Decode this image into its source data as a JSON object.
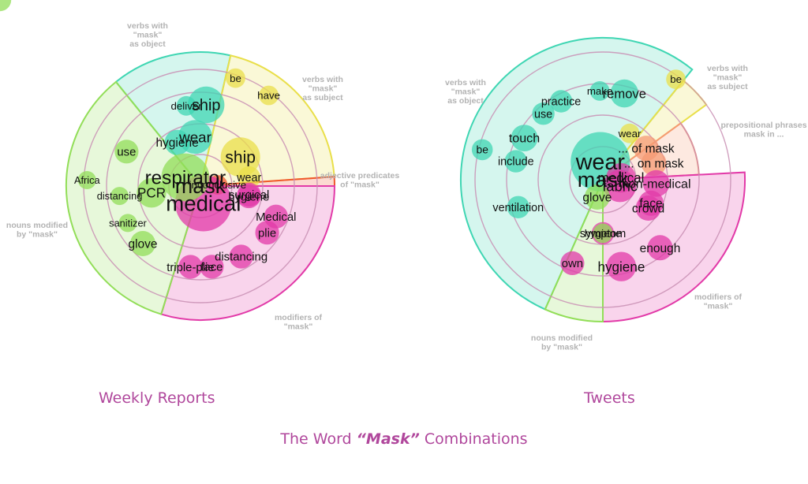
{
  "title": {
    "before": "The Word ",
    "emph": "“Mask”",
    "after": " Combinations"
  },
  "colors": {
    "verb_object": "#3fd6b3",
    "verb_subject": "#e9df4a",
    "adjective_predicate": "#f0582e",
    "prepositional": "#f59a73",
    "modifier": "#e23aa8",
    "noun_modified": "#92de58",
    "ring": "#c98fb4",
    "category_label": "#b3b3b3",
    "caption": "#b0479c"
  },
  "chart_data": [
    {
      "type": "radial-bubble",
      "caption": "Weekly Reports",
      "center_word": "mask",
      "sectors": [
        {
          "id": "verb_object",
          "label": [
            "verbs with",
            "\"mask\"",
            "as object"
          ],
          "start_deg": -39,
          "end_deg": 13
        },
        {
          "id": "verb_subject",
          "label": [
            "verbs with",
            "\"mask\"",
            "as subject"
          ],
          "start_deg": 13,
          "end_deg": 86
        },
        {
          "id": "adjective_predicate",
          "label": [
            "adjective predicates",
            "of \"mask\""
          ],
          "start_deg": 86,
          "end_deg": 90
        },
        {
          "id": "modifier",
          "label": [
            "modifiers of",
            "\"mask\""
          ],
          "start_deg": 90,
          "end_deg": 197
        },
        {
          "id": "noun_modified",
          "label": [
            "nouns modified",
            "by \"mask\""
          ],
          "start_deg": 197,
          "end_deg": 321
        }
      ],
      "words": [
        {
          "text": "deliver",
          "cat": "verb_object",
          "rank": 3,
          "weight": 0.6
        },
        {
          "text": "ship",
          "cat": "verb_object",
          "rank": 3,
          "weight": 1.8
        },
        {
          "text": "wear",
          "cat": "verb_object",
          "rank": 2,
          "weight": 1.6
        },
        {
          "text": "hygiene",
          "cat": "verb_object",
          "rank": 2,
          "weight": 1.0
        },
        {
          "text": "be",
          "cat": "verb_subject",
          "rank": 4,
          "weight": 0.6
        },
        {
          "text": "have",
          "cat": "verb_subject",
          "rank": 4,
          "weight": 0.6
        },
        {
          "text": "ship",
          "cat": "verb_subject",
          "rank": 2,
          "weight": 2.0
        },
        {
          "text": "wear",
          "cat": "verb_subject",
          "rank": 2,
          "weight": 0.8
        },
        {
          "text": "inconclusive",
          "cat": "adjective_predicate",
          "rank": 1,
          "weight": 0.6
        },
        {
          "text": "hygiene",
          "cat": "modifier",
          "rank": 2,
          "weight": 0.9
        },
        {
          "text": "surgical",
          "cat": "modifier",
          "rank": 2,
          "weight": 0.9
        },
        {
          "text": "Medical",
          "cat": "modifier",
          "rank": 3,
          "weight": 0.9
        },
        {
          "text": "plie",
          "cat": "modifier",
          "rank": 3,
          "weight": 0.9
        },
        {
          "text": "distancing",
          "cat": "modifier",
          "rank": 3,
          "weight": 0.9
        },
        {
          "text": "face",
          "cat": "modifier",
          "rank": 3,
          "weight": 0.9
        },
        {
          "text": "triple-plie",
          "cat": "modifier",
          "rank": 3,
          "weight": 0.9
        },
        {
          "text": "medical",
          "cat": "modifier",
          "rank": 1,
          "weight": 3.2
        },
        {
          "text": "respirator",
          "cat": "noun_modified",
          "rank": 1,
          "weight": 2.6
        },
        {
          "text": "PCR",
          "cat": "noun_modified",
          "rank": 2,
          "weight": 1.3
        },
        {
          "text": "use",
          "cat": "noun_modified",
          "rank": 3,
          "weight": 0.9
        },
        {
          "text": "distancing",
          "cat": "noun_modified",
          "rank": 3,
          "weight": 0.5
        },
        {
          "text": "Africa",
          "cat": "noun_modified",
          "rank": 4,
          "weight": 0.5
        },
        {
          "text": "sanitizer",
          "cat": "noun_modified",
          "rank": 3,
          "weight": 0.5
        },
        {
          "text": "glove",
          "cat": "noun_modified",
          "rank": 3,
          "weight": 1.0
        }
      ]
    },
    {
      "type": "radial-bubble",
      "caption": "Tweets",
      "center_word": "mask",
      "sectors": [
        {
          "id": "verb_object",
          "label": [
            "verbs with",
            "\"mask\"",
            "as object"
          ],
          "start_deg": -156,
          "end_deg": 39
        },
        {
          "id": "verb_subject",
          "label": [
            "verbs with",
            "\"mask\"",
            "as subject"
          ],
          "start_deg": 39,
          "end_deg": 54
        },
        {
          "id": "prepositional",
          "label": [
            "prepositional phrases",
            "mask in ..."
          ],
          "start_deg": 54,
          "end_deg": 87
        },
        {
          "id": "modifier",
          "label": [
            "modifiers of",
            "\"mask\""
          ],
          "start_deg": 87,
          "end_deg": 180
        },
        {
          "id": "noun_modified",
          "label": [
            "nouns modified",
            "by \"mask\""
          ],
          "start_deg": 180,
          "end_deg": 204
        }
      ],
      "words": [
        {
          "text": "make",
          "cat": "verb_object",
          "rank": 3,
          "weight": 0.6
        },
        {
          "text": "remove",
          "cat": "verb_object",
          "rank": 3,
          "weight": 1.2
        },
        {
          "text": "practice",
          "cat": "verb_object",
          "rank": 3,
          "weight": 0.8
        },
        {
          "text": "use",
          "cat": "verb_object",
          "rank": 3,
          "weight": 0.8
        },
        {
          "text": "wear",
          "cat": "verb_object",
          "rank": 1,
          "weight": 3.4
        },
        {
          "text": "touch",
          "cat": "verb_object",
          "rank": 3,
          "weight": 1.1
        },
        {
          "text": "be",
          "cat": "verb_object",
          "rank": 4,
          "weight": 0.7
        },
        {
          "text": "include",
          "cat": "verb_object",
          "rank": 3,
          "weight": 0.8
        },
        {
          "text": "ventilation",
          "cat": "verb_object",
          "rank": 3,
          "weight": 0.8
        },
        {
          "text": "be",
          "cat": "verb_subject",
          "rank": 4,
          "weight": 0.6
        },
        {
          "text": "wear",
          "cat": "verb_subject",
          "rank": 2,
          "weight": 0.6
        },
        {
          "text": "... of mask",
          "cat": "prepositional",
          "rank": 2,
          "weight": 1.0
        },
        {
          "text": "... on mask",
          "cat": "prepositional",
          "rank": 2,
          "weight": 1.0
        },
        {
          "text": "medical",
          "cat": "modifier",
          "rank": 1,
          "weight": 1.3
        },
        {
          "text": "non-medical",
          "cat": "modifier",
          "rank": 2,
          "weight": 1.1
        },
        {
          "text": "fabric",
          "cat": "modifier",
          "rank": 1,
          "weight": 1.5
        },
        {
          "text": "crowd",
          "cat": "modifier",
          "rank": 2,
          "weight": 1.0
        },
        {
          "text": "face",
          "cat": "modifier",
          "rank": 2,
          "weight": 1.0
        },
        {
          "text": "enough",
          "cat": "modifier",
          "rank": 3,
          "weight": 1.0
        },
        {
          "text": "hygiene",
          "cat": "modifier",
          "rank": 3,
          "weight": 1.3
        },
        {
          "text": "own",
          "cat": "modifier",
          "rank": 3,
          "weight": 0.9
        },
        {
          "text": "symptom",
          "cat": "modifier",
          "rank": 2,
          "weight": 0.8
        },
        {
          "text": "glove",
          "cat": "noun_modified",
          "rank": 1,
          "weight": 1.0
        },
        {
          "text": "hygiene",
          "cat": "noun_modified",
          "rank": 2,
          "weight": 0.6
        },
        {
          "text": "use",
          "cat": "noun_modified",
          "rank": 3,
          "weight": 0.8
        }
      ]
    }
  ]
}
